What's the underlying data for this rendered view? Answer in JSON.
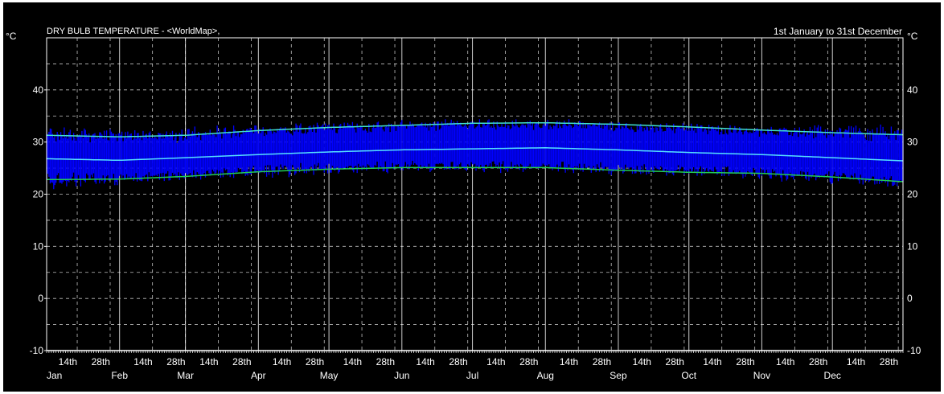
{
  "chart_data": {
    "type": "line",
    "title": "DRY BULB TEMPERATURE - <WorldMap>,",
    "date_range": "1st January to 31st December",
    "ylabel": "°C",
    "ylim": [
      -10,
      50
    ],
    "yticks": [
      "40",
      "30",
      "20",
      "10",
      "0",
      "-10"
    ],
    "x_ticks": [
      {
        "day": 14,
        "label": "14th",
        "month": ""
      },
      {
        "day": 28,
        "label": "28th",
        "month": ""
      },
      {
        "day": 1,
        "label": "",
        "month": "Jan"
      },
      {
        "day": 32,
        "label": "",
        "month": "Feb"
      },
      {
        "day": 46,
        "label": "14th",
        "month": ""
      },
      {
        "day": 60,
        "label": "28th",
        "month": ""
      },
      {
        "day": 60,
        "label": "",
        "month": "Mar"
      },
      {
        "day": 74,
        "label": "14th",
        "month": ""
      },
      {
        "day": 88,
        "label": "28th",
        "month": ""
      },
      {
        "day": 91,
        "label": "",
        "month": "Apr"
      },
      {
        "day": 105,
        "label": "14th",
        "month": ""
      },
      {
        "day": 119,
        "label": "28th",
        "month": ""
      },
      {
        "day": 121,
        "label": "",
        "month": "May"
      },
      {
        "day": 135,
        "label": "14th",
        "month": ""
      },
      {
        "day": 149,
        "label": "28th",
        "month": ""
      },
      {
        "day": 152,
        "label": "",
        "month": "Jun"
      },
      {
        "day": 166,
        "label": "14th",
        "month": ""
      },
      {
        "day": 180,
        "label": "28th",
        "month": ""
      },
      {
        "day": 182,
        "label": "",
        "month": "Jul"
      },
      {
        "day": 196,
        "label": "14th",
        "month": ""
      },
      {
        "day": 210,
        "label": "28th",
        "month": ""
      },
      {
        "day": 213,
        "label": "",
        "month": "Aug"
      },
      {
        "day": 227,
        "label": "14th",
        "month": ""
      },
      {
        "day": 241,
        "label": "28th",
        "month": ""
      },
      {
        "day": 244,
        "label": "",
        "month": "Sep"
      },
      {
        "day": 258,
        "label": "14th",
        "month": ""
      },
      {
        "day": 272,
        "label": "28th",
        "month": ""
      },
      {
        "day": 274,
        "label": "",
        "month": "Oct"
      },
      {
        "day": 288,
        "label": "14th",
        "month": ""
      },
      {
        "day": 302,
        "label": "28th",
        "month": ""
      },
      {
        "day": 305,
        "label": "",
        "month": "Nov"
      },
      {
        "day": 319,
        "label": "14th",
        "month": ""
      },
      {
        "day": 333,
        "label": "28th",
        "month": ""
      },
      {
        "day": 335,
        "label": "",
        "month": "Dec"
      },
      {
        "day": 349,
        "label": "14th",
        "month": ""
      },
      {
        "day": 363,
        "label": "28th",
        "month": ""
      }
    ],
    "xlim": [
      1,
      365
    ],
    "month_start_days": [
      1,
      32,
      60,
      91,
      121,
      152,
      182,
      213,
      244,
      274,
      305,
      335
    ],
    "grid": true,
    "colors": {
      "background": "#000000",
      "grid": "#ffffff",
      "hourly": "#0000ff",
      "mean": "#55e0ff",
      "max": "#40e0d0",
      "min": "#22cc55"
    },
    "envelope": {
      "x": [
        1,
        32,
        60,
        91,
        121,
        152,
        182,
        213,
        244,
        274,
        305,
        335,
        365
      ],
      "max": [
        31.3,
        31.0,
        31.3,
        32.2,
        32.8,
        33.2,
        33.6,
        33.7,
        33.4,
        32.9,
        32.3,
        31.8,
        31.4
      ],
      "mean": [
        26.8,
        26.5,
        27.0,
        27.6,
        28.1,
        28.5,
        28.7,
        28.9,
        28.5,
        28.0,
        27.6,
        27.0,
        26.4
      ],
      "min": [
        22.8,
        22.9,
        23.4,
        24.3,
        24.8,
        25.1,
        25.1,
        25.1,
        24.6,
        24.2,
        24.0,
        23.3,
        22.4
      ]
    },
    "hourly_band": {
      "x": [
        1,
        32,
        60,
        91,
        121,
        152,
        182,
        213,
        244,
        274,
        305,
        335,
        365
      ],
      "high": [
        33.5,
        33.0,
        33.0,
        33.5,
        34.0,
        34.3,
        34.5,
        34.5,
        34.3,
        33.8,
        33.5,
        33.5,
        33.5
      ],
      "low": [
        20.5,
        21.5,
        22.5,
        23.0,
        23.5,
        24.0,
        24.0,
        24.0,
        23.5,
        23.0,
        22.5,
        21.5,
        21.0
      ]
    }
  }
}
